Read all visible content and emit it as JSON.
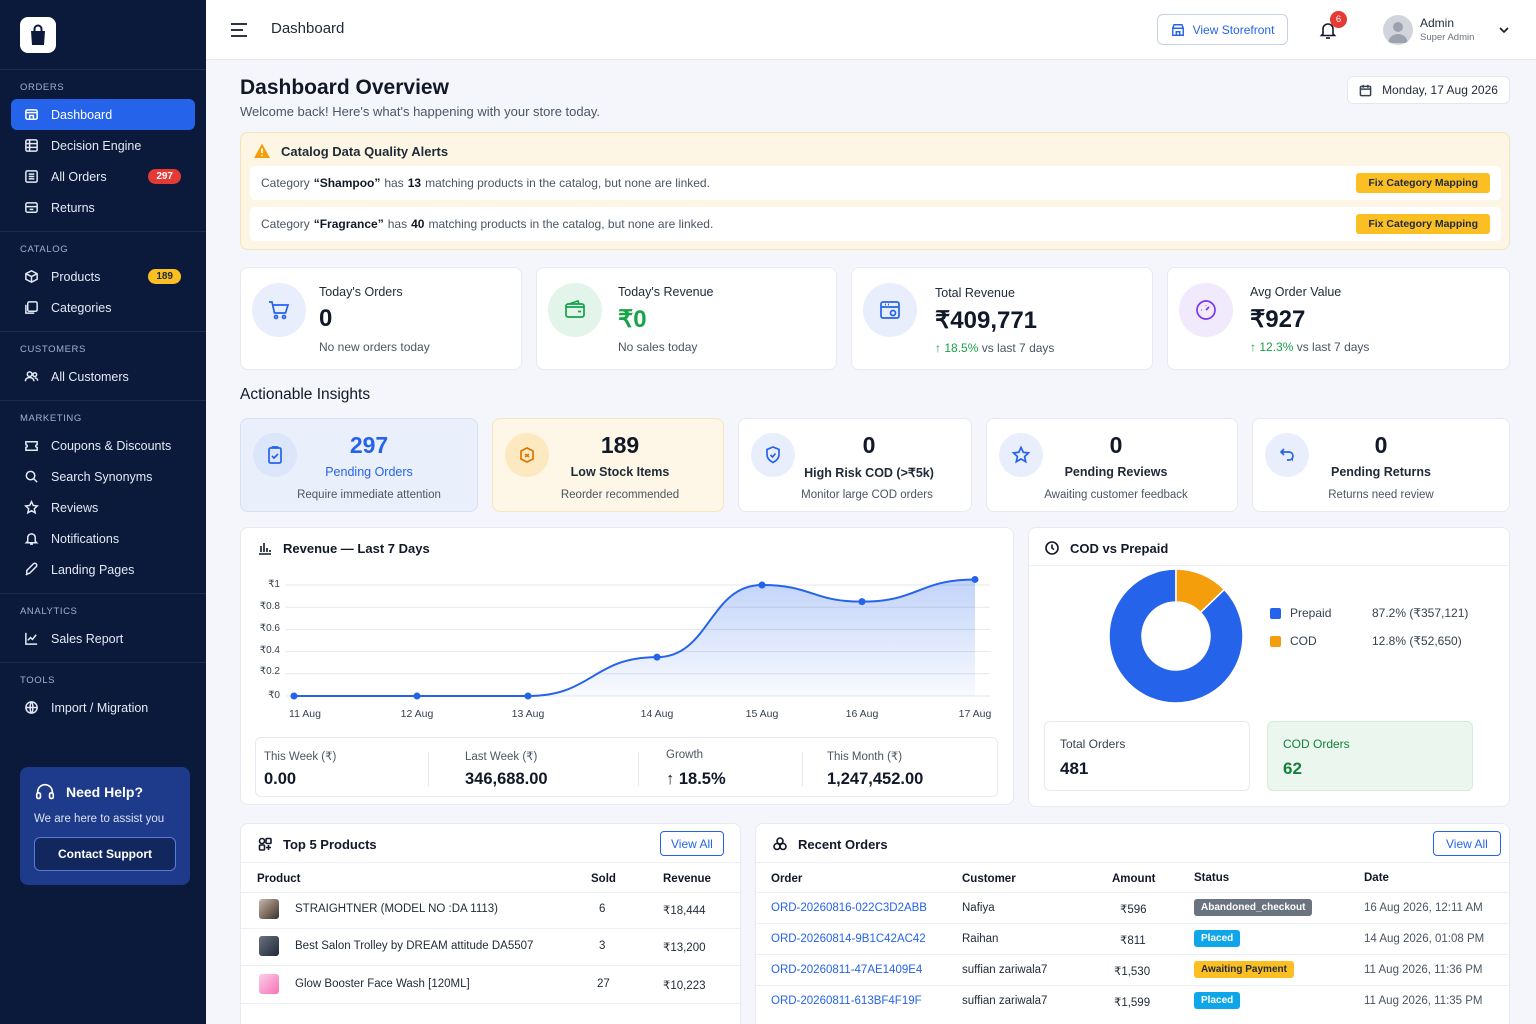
{
  "sidebar": {
    "sections": [
      {
        "title": "ORDERS",
        "items": [
          {
            "label": "Dashboard"
          },
          {
            "label": "Decision Engine"
          },
          {
            "label": "All Orders",
            "badge": "297"
          },
          {
            "label": "Returns"
          }
        ]
      },
      {
        "title": "CATALOG",
        "items": [
          {
            "label": "Products",
            "badge": "189"
          },
          {
            "label": "Categories"
          }
        ]
      },
      {
        "title": "CUSTOMERS",
        "items": [
          {
            "label": "All Customers"
          }
        ]
      },
      {
        "title": "MARKETING",
        "items": [
          {
            "label": "Coupons & Discounts"
          },
          {
            "label": "Search Synonyms"
          },
          {
            "label": "Reviews"
          },
          {
            "label": "Notifications"
          },
          {
            "label": "Landing Pages"
          }
        ]
      },
      {
        "title": "ANALYTICS",
        "items": [
          {
            "label": "Sales Report"
          }
        ]
      },
      {
        "title": "TOOLS",
        "items": [
          {
            "label": "Import / Migration"
          }
        ]
      }
    ],
    "help": {
      "title": "Need Help?",
      "subtitle": "We are here to assist you",
      "button": "Contact Support"
    }
  },
  "header": {
    "title": "Dashboard",
    "storefront_label": "View Storefront",
    "notification_count": "6",
    "user_name": "Admin",
    "user_role": "Super Admin"
  },
  "overview": {
    "title": "Dashboard Overview",
    "subtitle": "Welcome back! Here's what's happening with your store today.",
    "date": "Monday, 17 Aug 2026"
  },
  "alerts": {
    "title": "Catalog Data Quality Alerts",
    "fix_label": "Fix Category Mapping",
    "rows": [
      {
        "prefix": "Category",
        "name": "“Shampoo”",
        "mid": "has",
        "count": "13",
        "suffix": "matching products in the catalog, but none are linked."
      },
      {
        "prefix": "Category",
        "name": "“Fragrance”",
        "mid": "has",
        "count": "40",
        "suffix": "matching products in the catalog, but none are linked."
      }
    ]
  },
  "stats": [
    {
      "label": "Today's Orders",
      "value": "0",
      "sub": "No new orders today"
    },
    {
      "label": "Today's Revenue",
      "value": "₹0",
      "sub": "No sales today"
    },
    {
      "label": "Total Revenue",
      "value": "₹409,771",
      "change": "18.5%",
      "sub": "vs last 7 days"
    },
    {
      "label": "Avg Order Value",
      "value": "₹927",
      "change": "12.3%",
      "sub": "vs last 7 days"
    }
  ],
  "insights_title": "Actionable Insights",
  "insights": [
    {
      "value": "297",
      "label": "Pending Orders",
      "sub": "Require immediate attention"
    },
    {
      "value": "189",
      "label": "Low Stock Items",
      "sub": "Reorder recommended"
    },
    {
      "value": "0",
      "label": "High Risk COD (>₹5k)",
      "sub": "Monitor large COD orders"
    },
    {
      "value": "0",
      "label": "Pending Reviews",
      "sub": "Awaiting customer feedback"
    },
    {
      "value": "0",
      "label": "Pending Returns",
      "sub": "Returns need review"
    }
  ],
  "revenue": {
    "title": "Revenue — Last 7 Days",
    "summary": [
      {
        "label": "This Week (₹)",
        "value": "0.00"
      },
      {
        "label": "Last Week (₹)",
        "value": "346,688.00"
      },
      {
        "label": "Growth",
        "value": "18.5%"
      },
      {
        "label": "This Month (₹)",
        "value": "1,247,452.00"
      }
    ]
  },
  "cod": {
    "title": "COD vs Prepaid",
    "legend": [
      {
        "name": "Prepaid",
        "value": "87.2% (₹357,121)"
      },
      {
        "name": "COD",
        "value": "12.8% (₹52,650)"
      }
    ],
    "total_orders_label": "Total Orders",
    "total_orders": "481",
    "cod_orders_label": "COD Orders",
    "cod_orders": "62"
  },
  "chart_data": [
    {
      "type": "area",
      "title": "Revenue — Last 7 Days",
      "x": [
        "11 Aug",
        "12 Aug",
        "13 Aug",
        "14 Aug",
        "15 Aug",
        "16 Aug",
        "17 Aug"
      ],
      "y_ticks": [
        "₹0",
        "₹0.2",
        "₹0.4",
        "₹0.6",
        "₹0.8",
        "₹1"
      ],
      "ylim": [
        0,
        1
      ],
      "series": [
        {
          "values": [
            0,
            0,
            0,
            0.35,
            1.0,
            0.85,
            1.05
          ]
        }
      ],
      "grid": true,
      "color": "#2563eb"
    },
    {
      "type": "pie",
      "title": "COD vs Prepaid",
      "categories": [
        "Prepaid",
        "COD"
      ],
      "values": [
        87.2,
        12.8
      ],
      "colors": [
        "#2563eb",
        "#f59e0b"
      ],
      "legend": "right"
    }
  ],
  "top_products": {
    "title": "Top 5 Products",
    "view_all": "View All",
    "columns": [
      "Product",
      "Sold",
      "Revenue"
    ],
    "rows": [
      {
        "name": "STRAIGHTNER (MODEL NO :DA 1113)",
        "sold": "6",
        "revenue": "₹18,444"
      },
      {
        "name": "Best Salon Trolley by DREAM attitude DA5507",
        "sold": "3",
        "revenue": "₹13,200"
      },
      {
        "name": "Glow Booster Face Wash [120ML]",
        "sold": "27",
        "revenue": "₹10,223"
      }
    ]
  },
  "recent_orders": {
    "title": "Recent Orders",
    "view_all": "View All",
    "columns": [
      "Order",
      "Customer",
      "Amount",
      "Status",
      "Date"
    ],
    "rows": [
      {
        "order": "ORD-20260816-022C3D2ABB",
        "customer": "Nafiya",
        "amount": "₹596",
        "status": "Abandoned_checkout",
        "date": "16 Aug 2026, 12:11 AM"
      },
      {
        "order": "ORD-20260814-9B1C42AC42",
        "customer": "Raihan",
        "amount": "₹811",
        "status": "Placed",
        "date": "14 Aug 2026, 01:08 PM"
      },
      {
        "order": "ORD-20260811-47AE1409E4",
        "customer": "suffian zariwala7",
        "amount": "₹1,530",
        "status": "Awaiting Payment",
        "date": "11 Aug 2026,  11:36 PM"
      },
      {
        "order": "ORD-20260811-613BF4F19F",
        "customer": "suffian zariwala7",
        "amount": "₹1,599",
        "status": "Placed",
        "date": "11 Aug 2026,  11:35 PM"
      }
    ]
  }
}
